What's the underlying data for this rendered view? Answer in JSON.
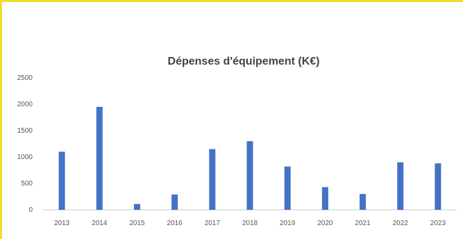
{
  "chart_data": {
    "type": "bar",
    "title": "Dépenses d'équipement (K€)",
    "xlabel": "",
    "ylabel": "",
    "categories": [
      "2013",
      "2014",
      "2015",
      "2016",
      "2017",
      "2018",
      "2019",
      "2020",
      "2021",
      "2022",
      "2023"
    ],
    "values": [
      1100,
      1950,
      110,
      290,
      1150,
      1300,
      820,
      430,
      300,
      900,
      880
    ],
    "ylim": [
      0,
      2500
    ],
    "yticks": [
      0,
      500,
      1000,
      1500,
      2000,
      2500
    ],
    "grid": false,
    "legend": "none",
    "bar_color": "#4472c4",
    "frame_color": "#f0dc2a"
  }
}
